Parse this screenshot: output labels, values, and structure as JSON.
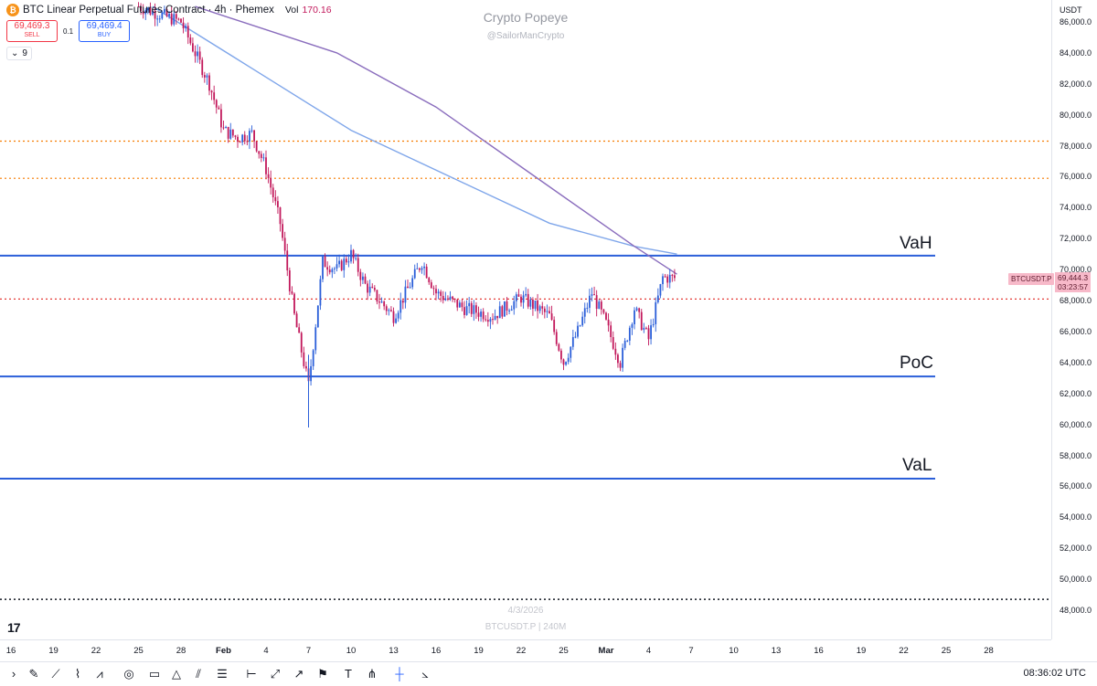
{
  "header": {
    "title": "BTC Linear Perpetual Futures Contract · 4h · Phemex",
    "vol_label": "Vol",
    "vol_value": "170.16",
    "sell_price": "69,469.3",
    "sell_label": "SELL",
    "spread": "0.1",
    "buy_price": "69,469.4",
    "buy_label": "BUY",
    "indicator_count": "9"
  },
  "watermark": {
    "name": "Crypto Popeye",
    "handle": "@SailorManCrypto",
    "date": "4/3/2026",
    "symbol_interval": "BTCUSDT.P | 240M"
  },
  "price_axis": {
    "currency": "USDT",
    "symbol_badge": "BTCUSDT.P",
    "last_price": "69,444.3",
    "countdown": "03:23:57"
  },
  "toolbar": {
    "clock": "08:36:02 UTC"
  },
  "colors": {
    "level_line": "#2b5fd9",
    "orange_dotted": "#f57c00",
    "red_dotted": "#e53935",
    "bull_candle": "#2b5fd9",
    "bear_candle": "#c2185b",
    "ma_fast": "#7fa6ea",
    "ma_slow": "#8a6dbd"
  },
  "chart_data": {
    "type": "candlestick",
    "symbol": "BTCUSDT.P",
    "timeframe": "4h",
    "ylim": [
      47000,
      87000
    ],
    "y_ticks": [
      48000,
      50000,
      52000,
      54000,
      56000,
      58000,
      60000,
      62000,
      64000,
      66000,
      68000,
      70000,
      72000,
      74000,
      76000,
      78000,
      80000,
      82000,
      84000,
      86000
    ],
    "x_ticks": [
      "16",
      "19",
      "22",
      "25",
      "28",
      "Feb",
      "4",
      "7",
      "10",
      "13",
      "16",
      "19",
      "22",
      "25",
      "Mar",
      "4",
      "7",
      "10",
      "13",
      "16",
      "19",
      "22",
      "25",
      "28"
    ],
    "last_price": 69444.3,
    "zones": [
      {
        "name": "VaH",
        "price": 70900
      },
      {
        "name": "PoC",
        "price": 63100
      },
      {
        "name": "VaL",
        "price": 56500
      }
    ],
    "dotted_levels": [
      {
        "price": 78300,
        "style": "orange"
      },
      {
        "price": 75900,
        "style": "orange"
      },
      {
        "price": 68100,
        "style": "red"
      },
      {
        "price": 48700,
        "style": "black"
      }
    ],
    "price_path": [
      {
        "date": "Jan 25",
        "price": 87000
      },
      {
        "date": "Jan 28",
        "price": 86000
      },
      {
        "date": "Jan 29",
        "price": 84000
      },
      {
        "date": "Jan 30",
        "price": 82000
      },
      {
        "date": "Jan 31",
        "price": 79000
      },
      {
        "date": "Feb 1",
        "price": 78500
      },
      {
        "date": "Feb 2",
        "price": 78800
      },
      {
        "date": "Feb 3",
        "price": 76500
      },
      {
        "date": "Feb 4",
        "price": 73000
      },
      {
        "date": "Feb 5",
        "price": 67000
      },
      {
        "date": "Feb 6",
        "price": 62500
      },
      {
        "date": "Feb 7",
        "price": 70500
      },
      {
        "date": "Feb 8",
        "price": 70000
      },
      {
        "date": "Feb 9",
        "price": 71000
      },
      {
        "date": "Feb 10",
        "price": 69000
      },
      {
        "date": "Feb 12",
        "price": 67000
      },
      {
        "date": "Feb 14",
        "price": 70500
      },
      {
        "date": "Feb 15",
        "price": 68500
      },
      {
        "date": "Feb 17",
        "price": 67500
      },
      {
        "date": "Feb 19",
        "price": 67000
      },
      {
        "date": "Feb 21",
        "price": 68200
      },
      {
        "date": "Feb 23",
        "price": 67000
      },
      {
        "date": "Feb 24",
        "price": 64000
      },
      {
        "date": "Feb 25",
        "price": 66000
      },
      {
        "date": "Feb 26",
        "price": 68500
      },
      {
        "date": "Feb 27",
        "price": 66500
      },
      {
        "date": "Feb 28",
        "price": 64000
      },
      {
        "date": "Mar 1",
        "price": 67500
      },
      {
        "date": "Mar 2",
        "price": 65500
      },
      {
        "date": "Mar 3",
        "price": 69500
      },
      {
        "date": "Mar 4",
        "price": 69444
      }
    ],
    "ma_fast": [
      {
        "date": "Jan 26",
        "price": 87000
      },
      {
        "date": "Feb 2",
        "price": 83000
      },
      {
        "date": "Feb 9",
        "price": 79000
      },
      {
        "date": "Feb 16",
        "price": 76000
      },
      {
        "date": "Feb 23",
        "price": 73000
      },
      {
        "date": "Mar 1",
        "price": 71500
      },
      {
        "date": "Mar 4",
        "price": 71000
      }
    ],
    "ma_slow": [
      {
        "date": "Jan 29",
        "price": 87000
      },
      {
        "date": "Feb 8",
        "price": 84000
      },
      {
        "date": "Feb 15",
        "price": 80500
      },
      {
        "date": "Feb 22",
        "price": 76000
      },
      {
        "date": "Mar 1",
        "price": 71500
      },
      {
        "date": "Mar 4",
        "price": 69700
      }
    ]
  }
}
